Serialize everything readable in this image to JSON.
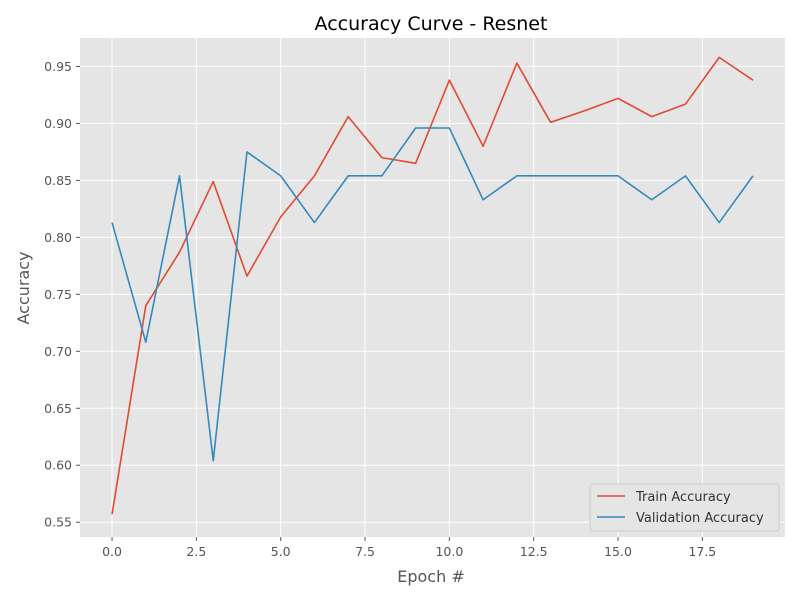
{
  "chart_data": {
    "type": "line",
    "title": "Accuracy Curve - Resnet",
    "xlabel": "Epoch #",
    "ylabel": "Accuracy",
    "xlim": [
      -0.95,
      19.95
    ],
    "ylim": [
      0.537,
      0.975
    ],
    "xticks": [
      0.0,
      2.5,
      5.0,
      7.5,
      10.0,
      12.5,
      15.0,
      17.5
    ],
    "xtick_labels": [
      "0.0",
      "2.5",
      "5.0",
      "7.5",
      "10.0",
      "12.5",
      "15.0",
      "17.5"
    ],
    "yticks": [
      0.55,
      0.6,
      0.65,
      0.7,
      0.75,
      0.8,
      0.85,
      0.9,
      0.95
    ],
    "ytick_labels": [
      "0.55",
      "0.60",
      "0.65",
      "0.70",
      "0.75",
      "0.80",
      "0.85",
      "0.90",
      "0.95"
    ],
    "grid": true,
    "legend_position": "lower-right",
    "x": [
      0,
      1,
      2,
      3,
      4,
      5,
      6,
      7,
      8,
      9,
      10,
      11,
      12,
      13,
      14,
      15,
      16,
      17,
      18,
      19
    ],
    "series": [
      {
        "name": "Train Accuracy",
        "color": "#E24A33",
        "values": [
          0.557,
          0.74,
          0.787,
          0.849,
          0.766,
          0.818,
          0.854,
          0.906,
          0.87,
          0.865,
          0.938,
          0.88,
          0.953,
          0.901,
          0.911,
          0.922,
          0.906,
          0.917,
          0.958,
          0.938
        ]
      },
      {
        "name": "Validation Accuracy",
        "color": "#348ABD",
        "values": [
          0.813,
          0.708,
          0.854,
          0.604,
          0.875,
          0.854,
          0.813,
          0.854,
          0.854,
          0.896,
          0.896,
          0.833,
          0.854,
          0.854,
          0.854,
          0.854,
          0.833,
          0.854,
          0.813,
          0.854
        ]
      }
    ]
  }
}
